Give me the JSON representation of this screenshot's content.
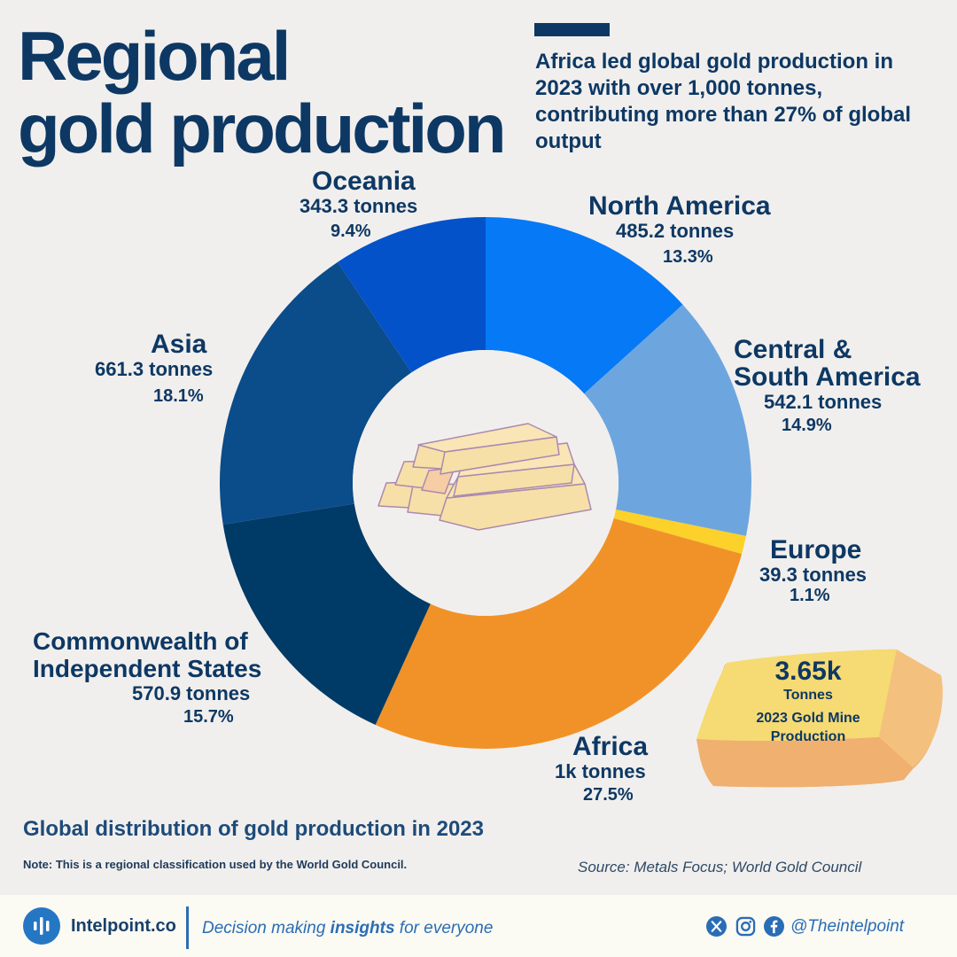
{
  "header": {
    "title_line1": "Regional",
    "title_line2": "gold production",
    "subtitle": "Africa led global gold production in 2023 with over 1,000 tonnes, contributing more than 27% of global output"
  },
  "chart_data": {
    "type": "pie",
    "donut": true,
    "start_angle_deg": 0,
    "direction": "clockwise",
    "series": [
      {
        "name": "North America",
        "value_label": "485.2 tonnes",
        "pct_label": "13.3%",
        "value": 485.2,
        "percent": 13.3,
        "color": "#0679f6"
      },
      {
        "name": "Central & South America",
        "value_label": "542.1 tonnes",
        "pct_label": "14.9%",
        "value": 542.1,
        "percent": 14.9,
        "color": "#6da6df"
      },
      {
        "name": "Europe",
        "value_label": "39.3 tonnes",
        "pct_label": "1.1%",
        "value": 39.3,
        "percent": 1.1,
        "color": "#fcd12a"
      },
      {
        "name": "Africa",
        "value_label": "1k tonnes",
        "pct_label": "27.5%",
        "value": 1000,
        "percent": 27.5,
        "color": "#f19228"
      },
      {
        "name": "Commonwealth of Independent States",
        "value_label": "570.9 tonnes",
        "pct_label": "15.7%",
        "value": 570.9,
        "percent": 15.7,
        "color": "#003a66"
      },
      {
        "name": "Asia",
        "value_label": "661.3 tonnes",
        "pct_label": "18.1%",
        "value": 661.3,
        "percent": 18.1,
        "color": "#0b4c8a"
      },
      {
        "name": "Oceania",
        "value_label": "343.3 tonnes",
        "pct_label": "9.4%",
        "value": 343.3,
        "percent": 9.4,
        "color": "#0452c9"
      }
    ]
  },
  "labels": {
    "north_america": {
      "name": "North America",
      "value": "485.2 tonnes",
      "pct": "13.3%"
    },
    "central_south_america": {
      "name1": "Central &",
      "name2": "South America",
      "value": "542.1 tonnes",
      "pct": "14.9%"
    },
    "europe": {
      "name": "Europe",
      "value": "39.3 tonnes",
      "pct": "1.1%"
    },
    "africa": {
      "name": "Africa",
      "value": "1k tonnes",
      "pct": "27.5%"
    },
    "cis": {
      "name1": "Commonwealth of",
      "name2": "Independent States",
      "value": "570.9 tonnes",
      "pct": "15.7%"
    },
    "asia": {
      "name": "Asia",
      "value": "661.3 tonnes",
      "pct": "18.1%"
    },
    "oceania": {
      "name": "Oceania",
      "value": "343.3 tonnes",
      "pct": "9.4%"
    }
  },
  "total": {
    "value": "3.65k",
    "unit": "Tonnes",
    "desc1": "2023 Gold Mine",
    "desc2": "Production"
  },
  "caption": "Global distribution of gold production in 2023",
  "note": "Note: This is a regional classification used by the World Gold Council.",
  "source": "Source: Metals Focus; World Gold Council",
  "footer": {
    "brand": "Intelpoint.co",
    "tagline_pre": "Decision making ",
    "tagline_bold": "insights",
    "tagline_post": " for everyone",
    "handle": "@Theintelpoint"
  },
  "icons": [
    "gold-bars-icon",
    "gold-bar-icon",
    "intelpoint-logo-icon",
    "x-icon",
    "instagram-icon",
    "facebook-icon"
  ]
}
